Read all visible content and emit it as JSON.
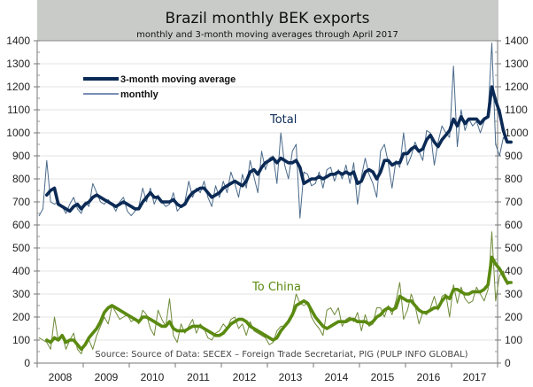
{
  "chart_data": {
    "type": "line",
    "title": "Brazil monthly BEK exports",
    "subtitle": "monthly and 3-month moving averages through April 2017",
    "xlabel": "",
    "ylabel": "",
    "ylim": [
      0,
      1400
    ],
    "yticks": [
      0,
      100,
      200,
      300,
      400,
      500,
      600,
      700,
      800,
      900,
      1000,
      1100,
      1200,
      1300,
      1400
    ],
    "ytick_labels": [
      "0",
      "100",
      "200",
      "300",
      "400",
      "500",
      "600",
      "700",
      "800",
      "900",
      "1000",
      "1100",
      "1200",
      "1300",
      "1400"
    ],
    "x_categories": [
      "2008",
      "2009",
      "2010",
      "2011",
      "2012",
      "2013",
      "2014",
      "2015",
      "2016",
      "2017"
    ],
    "x_start": "Jan 2008",
    "x_end": "Apr 2017",
    "grid": true,
    "legend": {
      "placement": "top-left",
      "entries": [
        {
          "label": "3-month moving average",
          "style": "thick"
        },
        {
          "label": "monthly",
          "style": "thin"
        }
      ]
    },
    "annotations": {
      "total_label": "Total",
      "china_label": "To China",
      "source": "Source: Source of Data: SECEX – Foreign Trade Secretariat, PIG (PULP INFO GLOBAL)"
    },
    "colors": {
      "total": "#0b2a55",
      "total_thin": "#4a6a8a",
      "china": "#5a8a10",
      "china_thin": "#6f8a3a",
      "header_bg": "#c9cbc9",
      "grid": "#e3e3e3"
    },
    "series": [
      {
        "name": "Total monthly",
        "group": "Total",
        "kind": "monthly",
        "values": [
          640,
          670,
          880,
          700,
          690,
          700,
          680,
          650,
          690,
          720,
          670,
          650,
          700,
          680,
          780,
          740,
          700,
          690,
          710,
          690,
          660,
          700,
          720,
          660,
          640,
          660,
          680,
          760,
          700,
          760,
          690,
          730,
          700,
          680,
          690,
          740,
          660,
          680,
          700,
          790,
          720,
          760,
          740,
          790,
          720,
          680,
          770,
          720,
          790,
          740,
          830,
          780,
          720,
          820,
          760,
          880,
          810,
          740,
          920,
          840,
          890,
          900,
          780,
          1000,
          860,
          800,
          920,
          950,
          630,
          830,
          820,
          770,
          780,
          830,
          760,
          840,
          850,
          790,
          840,
          800,
          860,
          780,
          870,
          690,
          810,
          890,
          820,
          780,
          720,
          920,
          950,
          870,
          760,
          880,
          850,
          1000,
          860,
          900,
          960,
          920,
          880,
          1010,
          1000,
          860,
          960,
          1030,
          1000,
          980,
          1290,
          940,
          1100,
          1010,
          1060,
          1030,
          1050,
          1000,
          1050,
          1080,
          1390,
          950,
          900,
          980,
          960,
          960
        ]
      },
      {
        "name": "Total 3-month moving average",
        "group": "Total",
        "kind": "moving_average",
        "values": [
          null,
          null,
          730,
          750,
          760,
          690,
          680,
          670,
          660,
          680,
          690,
          670,
          690,
          700,
          720,
          730,
          720,
          710,
          700,
          690,
          680,
          690,
          700,
          690,
          680,
          670,
          670,
          700,
          720,
          740,
          720,
          720,
          700,
          700,
          700,
          710,
          690,
          680,
          690,
          720,
          740,
          750,
          760,
          760,
          740,
          720,
          730,
          740,
          760,
          770,
          780,
          790,
          780,
          770,
          790,
          830,
          840,
          820,
          850,
          870,
          880,
          890,
          870,
          890,
          880,
          870,
          870,
          880,
          850,
          780,
          790,
          800,
          800,
          810,
          800,
          810,
          820,
          820,
          830,
          820,
          830,
          820,
          830,
          780,
          790,
          830,
          840,
          830,
          800,
          830,
          880,
          880,
          860,
          870,
          870,
          910,
          910,
          930,
          940,
          920,
          930,
          970,
          990,
          960,
          940,
          970,
          990,
          1010,
          1060,
          1030,
          1070,
          1040,
          1060,
          1060,
          1060,
          1040,
          1060,
          1070,
          1200,
          1140,
          1090,
          1010,
          960,
          960
        ]
      },
      {
        "name": "To China monthly",
        "group": "To China",
        "kind": "monthly",
        "values": [
          110,
          100,
          90,
          60,
          200,
          100,
          120,
          60,
          100,
          130,
          60,
          40,
          90,
          100,
          60,
          120,
          160,
          200,
          170,
          250,
          220,
          190,
          200,
          210,
          180,
          190,
          170,
          230,
          210,
          150,
          120,
          230,
          190,
          160,
          280,
          120,
          90,
          170,
          130,
          160,
          190,
          130,
          170,
          150,
          110,
          100,
          130,
          140,
          170,
          150,
          190,
          200,
          150,
          170,
          120,
          180,
          140,
          130,
          120,
          110,
          80,
          90,
          140,
          160,
          160,
          190,
          220,
          300,
          260,
          250,
          260,
          200,
          170,
          150,
          120,
          230,
          240,
          210,
          240,
          160,
          190,
          200,
          180,
          220,
          140,
          210,
          160,
          170,
          240,
          240,
          200,
          250,
          210,
          270,
          350,
          190,
          230,
          300,
          250,
          170,
          220,
          210,
          240,
          290,
          230,
          290,
          300,
          200,
          340,
          260,
          330,
          280,
          260,
          270,
          330,
          300,
          270,
          320,
          570,
          270,
          380,
          400,
          340,
          350
        ]
      },
      {
        "name": "To China 3-month moving average",
        "group": "To China",
        "kind": "moving_average",
        "values": [
          null,
          null,
          100,
          90,
          110,
          100,
          120,
          90,
          100,
          100,
          80,
          60,
          80,
          110,
          130,
          150,
          180,
          220,
          240,
          250,
          240,
          230,
          220,
          210,
          200,
          190,
          180,
          200,
          200,
          190,
          180,
          170,
          160,
          160,
          180,
          150,
          140,
          140,
          140,
          150,
          160,
          160,
          160,
          150,
          140,
          130,
          120,
          120,
          130,
          150,
          170,
          180,
          190,
          190,
          180,
          160,
          150,
          140,
          130,
          120,
          110,
          100,
          110,
          140,
          160,
          180,
          210,
          250,
          260,
          270,
          260,
          230,
          200,
          180,
          160,
          150,
          160,
          170,
          180,
          180,
          180,
          190,
          190,
          180,
          180,
          180,
          170,
          180,
          200,
          210,
          230,
          240,
          230,
          240,
          290,
          280,
          270,
          270,
          250,
          230,
          220,
          220,
          230,
          240,
          240,
          270,
          290,
          280,
          320,
          320,
          310,
          300,
          300,
          310,
          310,
          310,
          320,
          340,
          460,
          430,
          410,
          380,
          350,
          350
        ]
      }
    ]
  }
}
